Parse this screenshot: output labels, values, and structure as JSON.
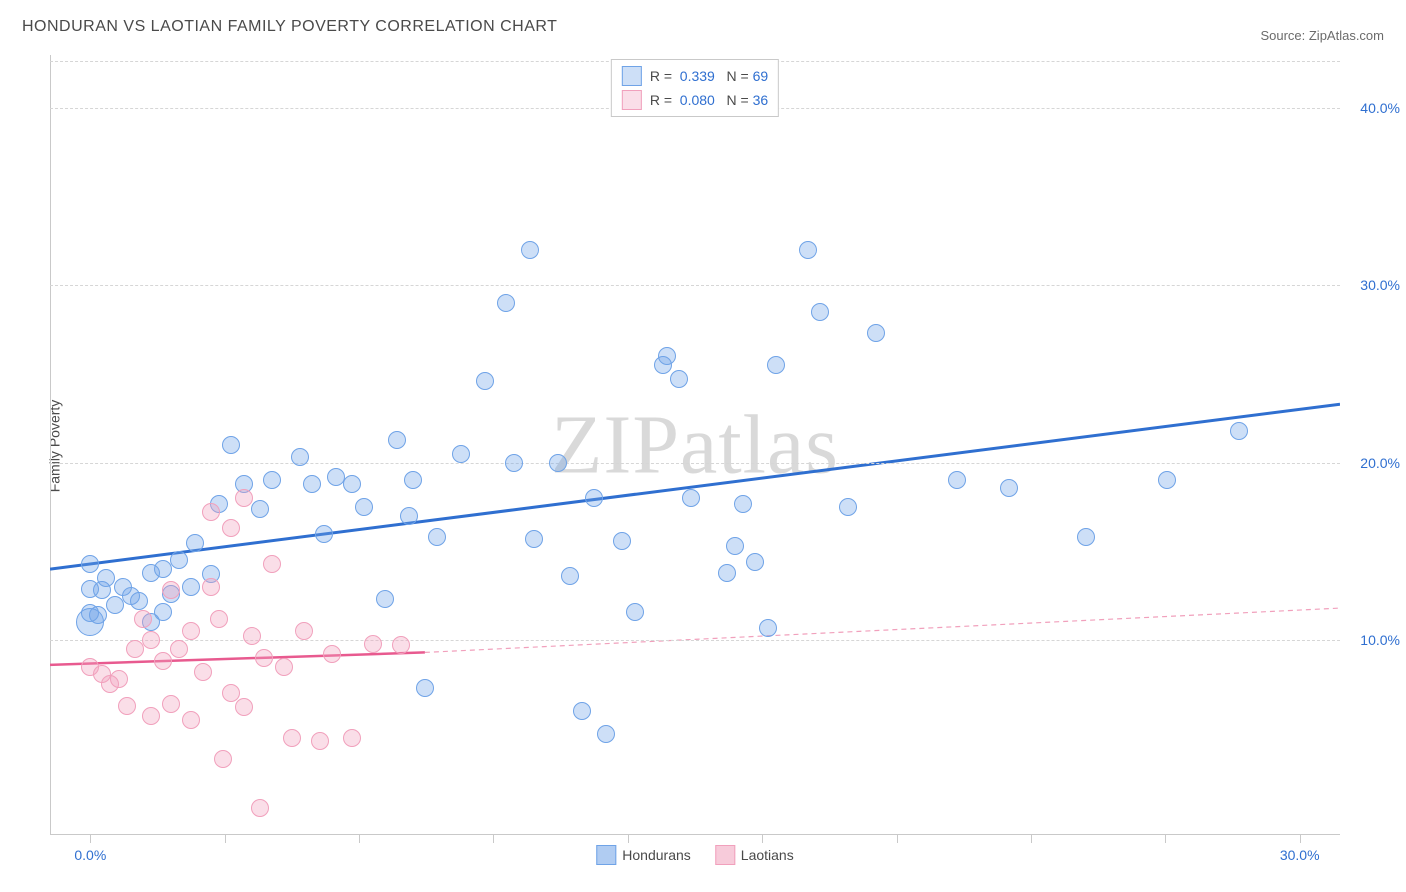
{
  "title": "HONDURAN VS LAOTIAN FAMILY POVERTY CORRELATION CHART",
  "source_label": "Source: ",
  "source_name": "ZipAtlas.com",
  "y_axis_label": "Family Poverty",
  "watermark_a": "ZIP",
  "watermark_b": "atlas",
  "chart": {
    "type": "scatter",
    "x_domain": [
      -1,
      31
    ],
    "y_domain": [
      -1,
      43
    ],
    "background_color": "#ffffff",
    "grid_color": "#d6d6d6",
    "axis_color": "#c9c9c9",
    "y_ticks": [
      {
        "v": 10,
        "label": "10.0%"
      },
      {
        "v": 20,
        "label": "20.0%"
      },
      {
        "v": 30,
        "label": "30.0%"
      },
      {
        "v": 40,
        "label": "40.0%"
      }
    ],
    "x_ticks_major": [
      0,
      30
    ],
    "x_ticks_minor": [
      3.33,
      6.67,
      10,
      13.33,
      16.67,
      20,
      23.33,
      26.67
    ],
    "x_tick_labels": [
      {
        "v": 0,
        "label": "0.0%"
      },
      {
        "v": 30,
        "label": "30.0%"
      }
    ],
    "tick_label_color": "#2f6fd0",
    "point_radius": 9,
    "big_point_radius": 14,
    "series": [
      {
        "name": "Hondurans",
        "color_fill": "rgba(111,163,231,0.35)",
        "color_stroke": "#6fa3e7",
        "trend": {
          "x1": -1,
          "y1": 14.0,
          "x2": 31,
          "y2": 23.3,
          "stroke": "#2f6fd0",
          "width": 3
        },
        "stats": {
          "R": "0.339",
          "N": "69"
        },
        "points": [
          [
            0.0,
            14.3
          ],
          [
            0.0,
            12.9
          ],
          [
            0.0,
            11.5
          ],
          [
            0.2,
            11.4
          ],
          [
            0.3,
            12.8
          ],
          [
            0.4,
            13.5
          ],
          [
            0.6,
            12.0
          ],
          [
            0.8,
            13.0
          ],
          [
            1.0,
            12.5
          ],
          [
            1.2,
            12.2
          ],
          [
            1.5,
            13.8
          ],
          [
            1.5,
            11.0
          ],
          [
            1.8,
            14.0
          ],
          [
            1.8,
            11.6
          ],
          [
            2.0,
            12.6
          ],
          [
            2.2,
            14.5
          ],
          [
            2.5,
            13.0
          ],
          [
            2.6,
            15.5
          ],
          [
            3.0,
            13.7
          ],
          [
            3.2,
            17.7
          ],
          [
            3.5,
            21.0
          ],
          [
            3.8,
            18.8
          ],
          [
            4.2,
            17.4
          ],
          [
            4.5,
            19.0
          ],
          [
            5.2,
            20.3
          ],
          [
            5.5,
            18.8
          ],
          [
            5.8,
            16.0
          ],
          [
            6.1,
            19.2
          ],
          [
            6.5,
            18.8
          ],
          [
            6.8,
            17.5
          ],
          [
            7.3,
            12.3
          ],
          [
            7.6,
            21.3
          ],
          [
            7.9,
            17.0
          ],
          [
            8.0,
            19.0
          ],
          [
            8.3,
            7.3
          ],
          [
            8.6,
            15.8
          ],
          [
            9.2,
            20.5
          ],
          [
            9.8,
            24.6
          ],
          [
            10.3,
            29.0
          ],
          [
            10.5,
            20.0
          ],
          [
            10.9,
            32.0
          ],
          [
            11.0,
            15.7
          ],
          [
            11.6,
            20.0
          ],
          [
            11.9,
            13.6
          ],
          [
            12.2,
            6.0
          ],
          [
            12.5,
            18.0
          ],
          [
            12.8,
            4.7
          ],
          [
            13.2,
            15.6
          ],
          [
            13.5,
            11.6
          ],
          [
            14.2,
            25.5
          ],
          [
            14.3,
            26.0
          ],
          [
            14.6,
            24.7
          ],
          [
            14.9,
            18.0
          ],
          [
            15.8,
            13.8
          ],
          [
            16.0,
            15.3
          ],
          [
            16.2,
            17.7
          ],
          [
            16.5,
            14.4
          ],
          [
            16.8,
            10.7
          ],
          [
            17.0,
            25.5
          ],
          [
            17.8,
            32.0
          ],
          [
            18.1,
            28.5
          ],
          [
            18.8,
            17.5
          ],
          [
            19.5,
            27.3
          ],
          [
            21.5,
            19.0
          ],
          [
            22.8,
            18.6
          ],
          [
            24.7,
            15.8
          ],
          [
            26.7,
            19.0
          ],
          [
            28.5,
            21.8
          ]
        ],
        "big_points": [
          [
            0.0,
            11.0
          ]
        ]
      },
      {
        "name": "Laotians",
        "color_fill": "rgba(241,160,188,0.35)",
        "color_stroke": "#f1a0bc",
        "trend": {
          "x1": -1,
          "y1": 8.6,
          "x2": 8.3,
          "y2": 9.3,
          "stroke": "#e85a8f",
          "width": 2.5
        },
        "trend_ext": {
          "x1": 8.3,
          "y1": 9.3,
          "x2": 31,
          "y2": 11.8,
          "stroke": "#f1a0bc",
          "width": 1.2,
          "dash": "5,4"
        },
        "stats": {
          "R": "0.080",
          "N": "36"
        },
        "points": [
          [
            0.0,
            8.5
          ],
          [
            0.3,
            8.1
          ],
          [
            0.5,
            7.5
          ],
          [
            0.7,
            7.8
          ],
          [
            0.9,
            6.3
          ],
          [
            1.1,
            9.5
          ],
          [
            1.3,
            11.2
          ],
          [
            1.5,
            10.0
          ],
          [
            1.5,
            5.7
          ],
          [
            1.8,
            8.8
          ],
          [
            2.0,
            12.8
          ],
          [
            2.0,
            6.4
          ],
          [
            2.2,
            9.5
          ],
          [
            2.5,
            10.5
          ],
          [
            2.5,
            5.5
          ],
          [
            2.8,
            8.2
          ],
          [
            3.0,
            17.2
          ],
          [
            3.0,
            13.0
          ],
          [
            3.2,
            11.2
          ],
          [
            3.3,
            3.3
          ],
          [
            3.5,
            16.3
          ],
          [
            3.5,
            7.0
          ],
          [
            3.8,
            6.2
          ],
          [
            3.8,
            18.0
          ],
          [
            4.0,
            10.2
          ],
          [
            4.2,
            0.5
          ],
          [
            4.3,
            9.0
          ],
          [
            4.5,
            14.3
          ],
          [
            4.8,
            8.5
          ],
          [
            5.0,
            4.5
          ],
          [
            5.3,
            10.5
          ],
          [
            5.7,
            4.3
          ],
          [
            6.0,
            9.2
          ],
          [
            6.5,
            4.5
          ],
          [
            7.0,
            9.8
          ],
          [
            7.7,
            9.7
          ]
        ],
        "big_points": []
      }
    ]
  },
  "stats_box": {
    "value_color": "#2f6fd0",
    "label_color": "#4a4a4a"
  },
  "legend": {
    "items": [
      {
        "label": "Hondurans",
        "fill": "rgba(111,163,231,0.55)",
        "stroke": "#6fa3e7"
      },
      {
        "label": "Laotians",
        "fill": "rgba(241,160,188,0.55)",
        "stroke": "#f1a0bc"
      }
    ]
  }
}
